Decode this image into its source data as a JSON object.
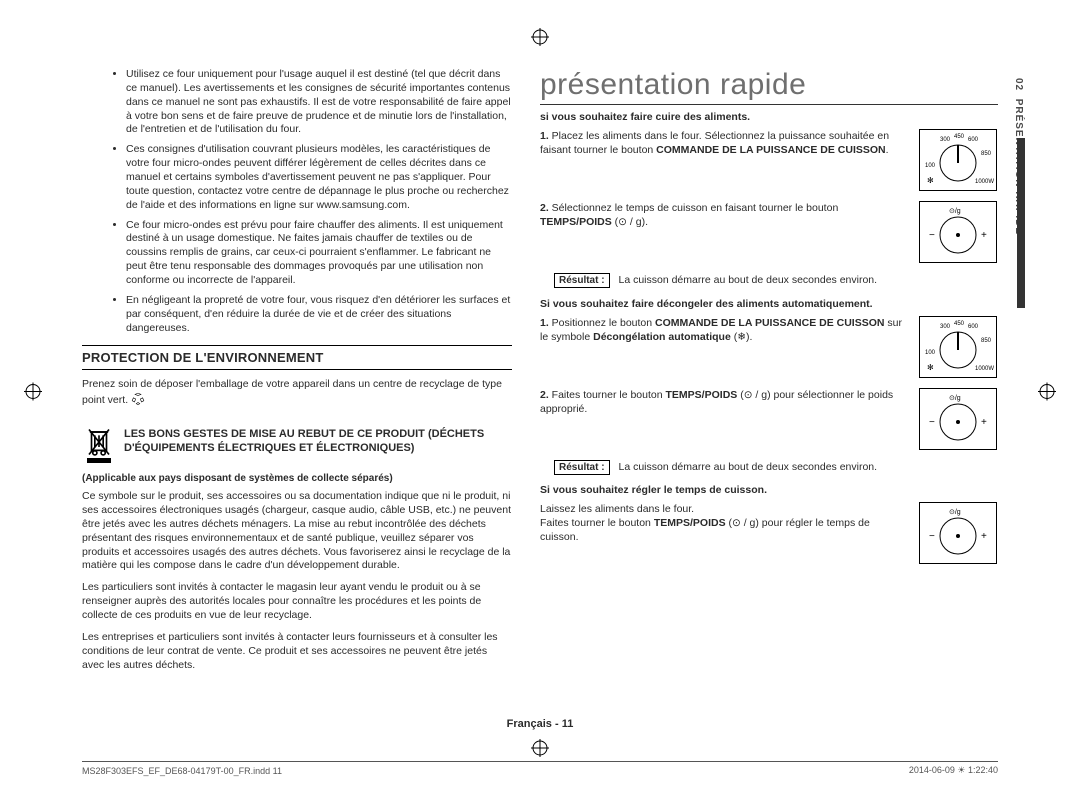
{
  "left": {
    "bullets": [
      "Utilisez ce four uniquement pour l'usage auquel il est destiné (tel que décrit dans ce manuel). Les avertissements et les consignes de sécurité importantes contenus dans ce manuel ne sont pas exhaustifs. Il est de votre responsabilité de faire appel à votre bon sens et de faire preuve de prudence et de minutie lors de l'installation, de l'entretien et de l'utilisation du four.",
      "Ces consignes d'utilisation couvrant plusieurs modèles, les caractéristiques de votre four micro-ondes peuvent différer légèrement de celles décrites dans ce manuel et certains symboles d'avertissement peuvent ne pas s'appliquer. Pour toute question, contactez votre centre de dépannage le plus proche ou recherchez de l'aide et des informations en ligne sur www.samsung.com.",
      "Ce four micro-ondes est prévu pour faire chauffer des aliments. Il est uniquement destiné à un usage domestique. Ne faites jamais chauffer de textiles ou de coussins remplis de grains, car ceux-ci pourraient s'enflammer. Le fabricant ne peut être tenu responsable des dommages provoqués par une utilisation non conforme ou incorrecte de l'appareil.",
      "En négligeant la propreté de votre four, vous risquez d'en détériorer les surfaces et par conséquent, d'en réduire la durée de vie et de créer des situations dangereuses."
    ],
    "envHeading": "PROTECTION DE L'ENVIRONNEMENT",
    "envBody": "Prenez soin de déposer l'emballage de votre appareil dans un centre de recyclage de type point vert.",
    "weeeTitle": "LES BONS GESTES DE MISE AU REBUT DE CE PRODUIT (DÉCHETS D'ÉQUIPEMENTS ÉLECTRIQUES ET ÉLECTRONIQUES)",
    "applicable": "(Applicable aux pays disposant de systèmes de collecte séparés)",
    "weeeParas": [
      "Ce symbole sur le produit, ses accessoires ou sa documentation indique que ni le produit, ni ses accessoires électroniques usagés (chargeur, casque audio, câble USB, etc.) ne peuvent être jetés avec les autres déchets ménagers. La mise au rebut incontrôlée des déchets présentant des risques environnementaux et de santé publique, veuillez séparer vos produits et accessoires usagés des autres déchets. Vous favoriserez ainsi le recyclage de la matière qui les compose dans le cadre d'un développement durable.",
      "Les particuliers sont invités à contacter le magasin leur ayant vendu le produit ou à se renseigner auprès des autorités locales pour connaître les procédures et les points de collecte de ces produits en vue de leur recyclage.",
      "Les entreprises et particuliers sont invités à contacter leurs fournisseurs et à consulter les conditions de leur contrat de vente. Ce produit et ses accessoires ne peuvent être jetés avec les autres déchets."
    ]
  },
  "right": {
    "title": "présentation rapide",
    "sections": [
      {
        "heading": "si vous souhaitez faire cuire des aliments.",
        "steps": [
          {
            "n": "1.",
            "html": "Placez les aliments dans le four. Sélectionnez la puissance souhaitée en faisant tourner le bouton <b>COMMANDE DE LA PUISSANCE DE CUISSON</b>.",
            "dial": "power"
          },
          {
            "n": "2.",
            "html": "Sélectionnez le temps de cuisson en faisant tourner le bouton <b>TEMPS/POIDS</b> (⊙ / g).",
            "dial": "time"
          }
        ],
        "resultLabel": "Résultat :",
        "resultText": "La cuisson démarre au bout de deux secondes environ."
      },
      {
        "heading": "Si vous souhaitez faire décongeler des aliments automatiquement.",
        "steps": [
          {
            "n": "1.",
            "html": "Positionnez le bouton <b>COMMANDE DE LA PUISSANCE DE CUISSON</b> sur le symbole <b>Décongélation automatique</b> (❄).",
            "dial": "power"
          },
          {
            "n": "2.",
            "html": "Faites tourner le bouton <b>TEMPS/POIDS</b> (⊙ / g) pour sélectionner le poids approprié.",
            "dial": "time"
          }
        ],
        "resultLabel": "Résultat :",
        "resultText": "La cuisson démarre au bout de deux secondes environ."
      },
      {
        "heading": "Si vous souhaitez régler le temps de cuisson.",
        "paraHtml": "Laissez les aliments dans le four.<br>Faites tourner le bouton <b>TEMPS/POIDS</b> (⊙ / g) pour régler le temps de cuisson.",
        "dial": "time"
      }
    ]
  },
  "sideTab": {
    "num": "02",
    "label": "PRÉSENTATION RAPIDE"
  },
  "dials": {
    "power": {
      "labels": [
        "300",
        "450",
        "600",
        "850",
        "100",
        "1000W"
      ],
      "snowflake": true
    },
    "time": {
      "top": "⊙/g",
      "left": "−",
      "right": "+"
    }
  },
  "footer": {
    "center": "Français - 11",
    "left": "MS28F303EFS_EF_DE68-04179T-00_FR.indd   11",
    "right": "2014-06-09   ☀ 1:22:40"
  },
  "colors": {
    "text": "#2b2b2b",
    "titleGrey": "#6f6f6f",
    "accent": "#333333"
  }
}
